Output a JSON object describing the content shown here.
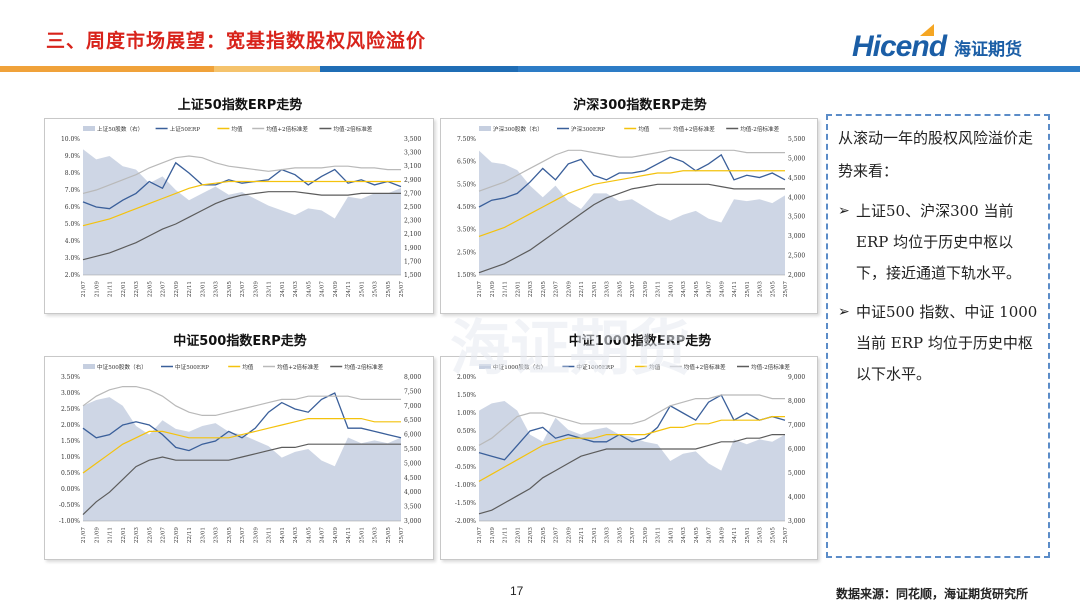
{
  "header": {
    "title": "三、周度市场展望：宽基指数股权风险溢价",
    "logo_text": "Hicend",
    "logo_cn": "海证期货"
  },
  "note": {
    "intro": "从滚动一年的股权风险溢价走势来看：",
    "bullets": [
      "上证50、沪深300 当前 ERP 均位于历史中枢以下，接近通道下轨水平。",
      "中证500 指数、中证 1000当前 ERP 均位于历史中枢以下水平。"
    ]
  },
  "footer": {
    "page": "17",
    "source": "数据来源：同花顺，海证期货研究所"
  },
  "colors": {
    "area": "#c6cfe0",
    "erp": "#3a5f9a",
    "mean": "#f4c20d",
    "upper": "#b9b9b9",
    "lower": "#5c5c5c"
  },
  "chart_data": [
    {
      "type": "line",
      "title": "上证50指数ERP走势",
      "legend": [
        "上证50股数（右）",
        "上证50ERP",
        "均值",
        "均值+2倍标准差",
        "均值-2倍标准差"
      ],
      "x": [
        "21/07",
        "21/09",
        "21/11",
        "22/01",
        "22/03",
        "22/05",
        "22/07",
        "22/09",
        "22/11",
        "23/01",
        "23/03",
        "23/05",
        "23/07",
        "23/09",
        "23/11",
        "24/01",
        "24/03",
        "24/05",
        "24/07",
        "24/09",
        "24/11",
        "25/01",
        "25/03",
        "25/05",
        "25/07"
      ],
      "ylim_left": [
        2.0,
        10.0
      ],
      "yticks_left": [
        "2.0%",
        "3.0%",
        "4.0%",
        "5.0%",
        "6.0%",
        "7.0%",
        "8.0%",
        "9.0%",
        "10.0%"
      ],
      "ylim_right": [
        1500,
        3500
      ],
      "yticks_right": [
        "1,500",
        "1,700",
        "1,900",
        "2,100",
        "2,300",
        "2,500",
        "2,700",
        "2,900",
        "3,100",
        "3,300",
        "3,500"
      ],
      "series": [
        {
          "name": "上证50股数（右）",
          "axis": "right",
          "values": [
            3350,
            3200,
            3250,
            3100,
            3050,
            2850,
            2950,
            2750,
            2600,
            2700,
            2800,
            2680,
            2720,
            2620,
            2520,
            2450,
            2380,
            2480,
            2450,
            2330,
            2650,
            2620,
            2700,
            2700,
            2780
          ]
        },
        {
          "name": "上证50ERP",
          "axis": "left",
          "values": [
            6.3,
            6.0,
            5.9,
            6.4,
            6.8,
            7.5,
            7.1,
            8.6,
            8.0,
            7.3,
            7.3,
            7.6,
            7.4,
            7.5,
            7.6,
            8.2,
            7.9,
            7.3,
            7.8,
            8.2,
            7.4,
            7.6,
            7.3,
            7.5,
            7.2
          ]
        },
        {
          "name": "均值",
          "axis": "left",
          "values": [
            4.9,
            5.1,
            5.3,
            5.6,
            5.9,
            6.2,
            6.5,
            6.8,
            7.1,
            7.3,
            7.4,
            7.5,
            7.5,
            7.5,
            7.5,
            7.5,
            7.5,
            7.5,
            7.5,
            7.5,
            7.5,
            7.5,
            7.5,
            7.5,
            7.5
          ]
        },
        {
          "name": "均值+2倍标准差",
          "axis": "left",
          "values": [
            6.8,
            7.0,
            7.3,
            7.6,
            7.9,
            8.3,
            8.6,
            8.9,
            9.0,
            8.9,
            8.6,
            8.4,
            8.3,
            8.2,
            8.1,
            8.2,
            8.3,
            8.3,
            8.3,
            8.4,
            8.4,
            8.3,
            8.3,
            8.2,
            8.2
          ]
        },
        {
          "name": "均值-2倍标准差",
          "axis": "left",
          "values": [
            2.9,
            3.1,
            3.3,
            3.6,
            3.9,
            4.3,
            4.7,
            5.0,
            5.4,
            5.8,
            6.2,
            6.5,
            6.7,
            6.8,
            6.9,
            6.9,
            6.9,
            6.8,
            6.7,
            6.7,
            6.7,
            6.8,
            6.8,
            6.8,
            6.8
          ]
        }
      ]
    },
    {
      "type": "line",
      "title": "沪深300指数ERP走势",
      "legend": [
        "沪深300股数（右）",
        "沪深300ERP",
        "均值",
        "均值+2倍标准差",
        "均值-2倍标准差"
      ],
      "x": [
        "21/07",
        "21/09",
        "21/11",
        "22/01",
        "22/03",
        "22/05",
        "22/07",
        "22/09",
        "22/11",
        "23/01",
        "23/03",
        "23/05",
        "23/07",
        "23/09",
        "23/11",
        "24/01",
        "24/03",
        "24/05",
        "24/07",
        "24/09",
        "24/11",
        "25/01",
        "25/03",
        "25/05",
        "25/07"
      ],
      "ylim_left": [
        1.5,
        7.5
      ],
      "yticks_left": [
        "1.50%",
        "2.50%",
        "3.50%",
        "4.50%",
        "5.50%",
        "6.50%",
        "7.50%"
      ],
      "ylim_right": [
        2000,
        5500
      ],
      "yticks_right": [
        "2,000",
        "2,500",
        "3,000",
        "3,500",
        "4,000",
        "4,500",
        "5,000",
        "5,500"
      ],
      "series": [
        {
          "name": "沪深300股数（右）",
          "axis": "right",
          "values": [
            5200,
            4900,
            4850,
            4700,
            4300,
            4000,
            4300,
            3900,
            3700,
            4100,
            4100,
            3900,
            3950,
            3750,
            3550,
            3400,
            3550,
            3650,
            3450,
            3350,
            3950,
            3900,
            3950,
            3850,
            4050
          ]
        },
        {
          "name": "沪深300ERP",
          "axis": "left",
          "values": [
            4.5,
            4.8,
            4.9,
            5.1,
            5.6,
            6.2,
            5.7,
            6.4,
            6.6,
            5.9,
            5.7,
            6.0,
            6.0,
            6.1,
            6.4,
            6.7,
            6.5,
            6.1,
            6.4,
            6.8,
            5.7,
            5.9,
            5.8,
            6.0,
            5.7
          ]
        },
        {
          "name": "均值",
          "axis": "left",
          "values": [
            3.2,
            3.4,
            3.6,
            3.9,
            4.2,
            4.5,
            4.8,
            5.1,
            5.3,
            5.5,
            5.6,
            5.7,
            5.8,
            5.9,
            6.0,
            6.0,
            6.1,
            6.1,
            6.1,
            6.1,
            6.1,
            6.1,
            6.1,
            6.1,
            6.1
          ]
        },
        {
          "name": "均值+2倍标准差",
          "axis": "left",
          "values": [
            5.2,
            5.4,
            5.6,
            5.9,
            6.2,
            6.5,
            6.8,
            7.0,
            7.0,
            6.9,
            6.8,
            6.7,
            6.7,
            6.8,
            6.9,
            7.0,
            7.0,
            7.0,
            7.0,
            7.0,
            7.0,
            6.9,
            6.9,
            6.9,
            6.9
          ]
        },
        {
          "name": "均值-2倍标准差",
          "axis": "left",
          "values": [
            1.6,
            1.8,
            2.0,
            2.3,
            2.6,
            3.0,
            3.4,
            3.8,
            4.2,
            4.6,
            4.9,
            5.1,
            5.3,
            5.4,
            5.5,
            5.5,
            5.5,
            5.5,
            5.5,
            5.4,
            5.3,
            5.3,
            5.3,
            5.3,
            5.3
          ]
        }
      ]
    },
    {
      "type": "line",
      "title": "中证500指数ERP走势",
      "legend": [
        "中证500股数（右）",
        "中证500ERP",
        "均值",
        "均值+2倍标准差",
        "均值-2倍标准差"
      ],
      "x": [
        "21/07",
        "21/09",
        "21/11",
        "22/01",
        "22/03",
        "22/05",
        "22/07",
        "22/09",
        "22/11",
        "23/01",
        "23/03",
        "23/05",
        "23/07",
        "23/09",
        "23/11",
        "24/01",
        "24/03",
        "24/05",
        "24/07",
        "24/09",
        "24/11",
        "25/01",
        "25/03",
        "25/05",
        "25/07"
      ],
      "ylim_left": [
        -1.0,
        3.5
      ],
      "yticks_left": [
        "-1.00%",
        "-0.50%",
        "0.00%",
        "0.50%",
        "1.00%",
        "1.50%",
        "2.00%",
        "2.50%",
        "3.00%",
        "3.50%"
      ],
      "ylim_right": [
        3000,
        8000
      ],
      "yticks_right": [
        "3,000",
        "3,500",
        "4,000",
        "4,500",
        "5,000",
        "5,500",
        "6,000",
        "6,500",
        "7,000",
        "7,500",
        "8,000"
      ],
      "series": [
        {
          "name": "中证500股数（右）",
          "axis": "right",
          "values": [
            7000,
            7200,
            7300,
            7000,
            6300,
            6000,
            6500,
            6200,
            6100,
            6300,
            6400,
            6100,
            6000,
            5800,
            5600,
            5200,
            5400,
            5500,
            5100,
            4900,
            5900,
            5700,
            5800,
            5700,
            5900
          ]
        },
        {
          "name": "中证500ERP",
          "axis": "left",
          "values": [
            1.9,
            1.6,
            1.7,
            2.0,
            2.1,
            2.0,
            1.7,
            1.3,
            1.2,
            1.4,
            1.5,
            1.8,
            1.6,
            1.9,
            2.4,
            2.7,
            2.5,
            2.4,
            2.8,
            3.0,
            1.9,
            1.9,
            1.8,
            1.7,
            1.6
          ]
        },
        {
          "name": "均值",
          "axis": "left",
          "values": [
            0.5,
            0.8,
            1.1,
            1.4,
            1.6,
            1.8,
            1.8,
            1.7,
            1.6,
            1.6,
            1.6,
            1.6,
            1.7,
            1.8,
            1.9,
            2.0,
            2.1,
            2.2,
            2.2,
            2.2,
            2.2,
            2.2,
            2.1,
            2.1,
            2.1
          ]
        },
        {
          "name": "均值+2倍标准差",
          "axis": "left",
          "values": [
            2.6,
            2.9,
            3.1,
            3.2,
            3.2,
            3.1,
            2.9,
            2.6,
            2.4,
            2.3,
            2.3,
            2.4,
            2.5,
            2.6,
            2.7,
            2.8,
            2.8,
            2.9,
            2.9,
            2.9,
            2.9,
            2.8,
            2.8,
            2.8,
            2.8
          ]
        },
        {
          "name": "均值-2倍标准差",
          "axis": "left",
          "values": [
            -0.8,
            -0.4,
            -0.1,
            0.3,
            0.7,
            0.9,
            1.0,
            0.9,
            0.9,
            0.9,
            0.9,
            0.9,
            1.0,
            1.1,
            1.2,
            1.3,
            1.3,
            1.4,
            1.4,
            1.4,
            1.4,
            1.4,
            1.4,
            1.4,
            1.4
          ]
        }
      ]
    },
    {
      "type": "line",
      "title": "中证1000指数ERP走势",
      "legend": [
        "中证1000股数（右）",
        "中证1000ERP",
        "均值",
        "均值+2倍标准差",
        "均值-2倍标准差"
      ],
      "x": [
        "21/07",
        "21/09",
        "21/11",
        "22/01",
        "22/03",
        "22/05",
        "22/07",
        "22/09",
        "22/11",
        "23/01",
        "23/03",
        "23/05",
        "23/07",
        "23/09",
        "23/11",
        "24/01",
        "24/03",
        "24/05",
        "24/07",
        "24/09",
        "24/11",
        "25/01",
        "25/03",
        "25/05",
        "25/07"
      ],
      "ylim_left": [
        -2.0,
        2.0
      ],
      "yticks_left": [
        "-2.00%",
        "-1.50%",
        "-1.00%",
        "-0.50%",
        "0.00%",
        "0.50%",
        "1.00%",
        "1.50%",
        "2.00%"
      ],
      "ylim_right": [
        3000,
        9000
      ],
      "yticks_right": [
        "3,000",
        "4,000",
        "5,000",
        "6,000",
        "7,000",
        "8,000",
        "9,000"
      ],
      "series": [
        {
          "name": "中证1000股数（右）",
          "axis": "right",
          "values": [
            7600,
            7900,
            8000,
            7600,
            6600,
            6300,
            7300,
            6800,
            6600,
            6800,
            6900,
            6600,
            6500,
            6300,
            6200,
            5500,
            5800,
            5900,
            5400,
            5100,
            6400,
            6200,
            6400,
            6300,
            6600
          ]
        },
        {
          "name": "中证1000ERP",
          "axis": "left",
          "values": [
            -0.1,
            -0.2,
            -0.3,
            0.1,
            0.5,
            0.6,
            0.3,
            0.4,
            0.3,
            0.2,
            0.2,
            0.4,
            0.2,
            0.3,
            0.6,
            1.2,
            1.0,
            0.8,
            1.3,
            1.5,
            0.8,
            1.0,
            0.8,
            0.9,
            0.8
          ]
        },
        {
          "name": "均值",
          "axis": "left",
          "values": [
            -0.9,
            -0.7,
            -0.5,
            -0.3,
            -0.1,
            0.1,
            0.2,
            0.3,
            0.3,
            0.3,
            0.4,
            0.4,
            0.4,
            0.4,
            0.5,
            0.6,
            0.6,
            0.7,
            0.7,
            0.8,
            0.8,
            0.8,
            0.8,
            0.9,
            0.9
          ]
        },
        {
          "name": "均值+2倍标准差",
          "axis": "left",
          "values": [
            0.1,
            0.3,
            0.6,
            0.9,
            1.0,
            1.0,
            0.9,
            0.8,
            0.7,
            0.7,
            0.7,
            0.7,
            0.7,
            0.8,
            1.0,
            1.2,
            1.3,
            1.4,
            1.4,
            1.5,
            1.5,
            1.5,
            1.5,
            1.4,
            1.4
          ]
        },
        {
          "name": "均值-2倍标准差",
          "axis": "left",
          "values": [
            -1.8,
            -1.7,
            -1.5,
            -1.3,
            -1.1,
            -0.8,
            -0.6,
            -0.4,
            -0.2,
            -0.1,
            0.0,
            0.0,
            0.0,
            0.0,
            0.0,
            0.0,
            0.0,
            0.0,
            0.1,
            0.2,
            0.2,
            0.3,
            0.3,
            0.4,
            0.4
          ]
        }
      ]
    }
  ]
}
